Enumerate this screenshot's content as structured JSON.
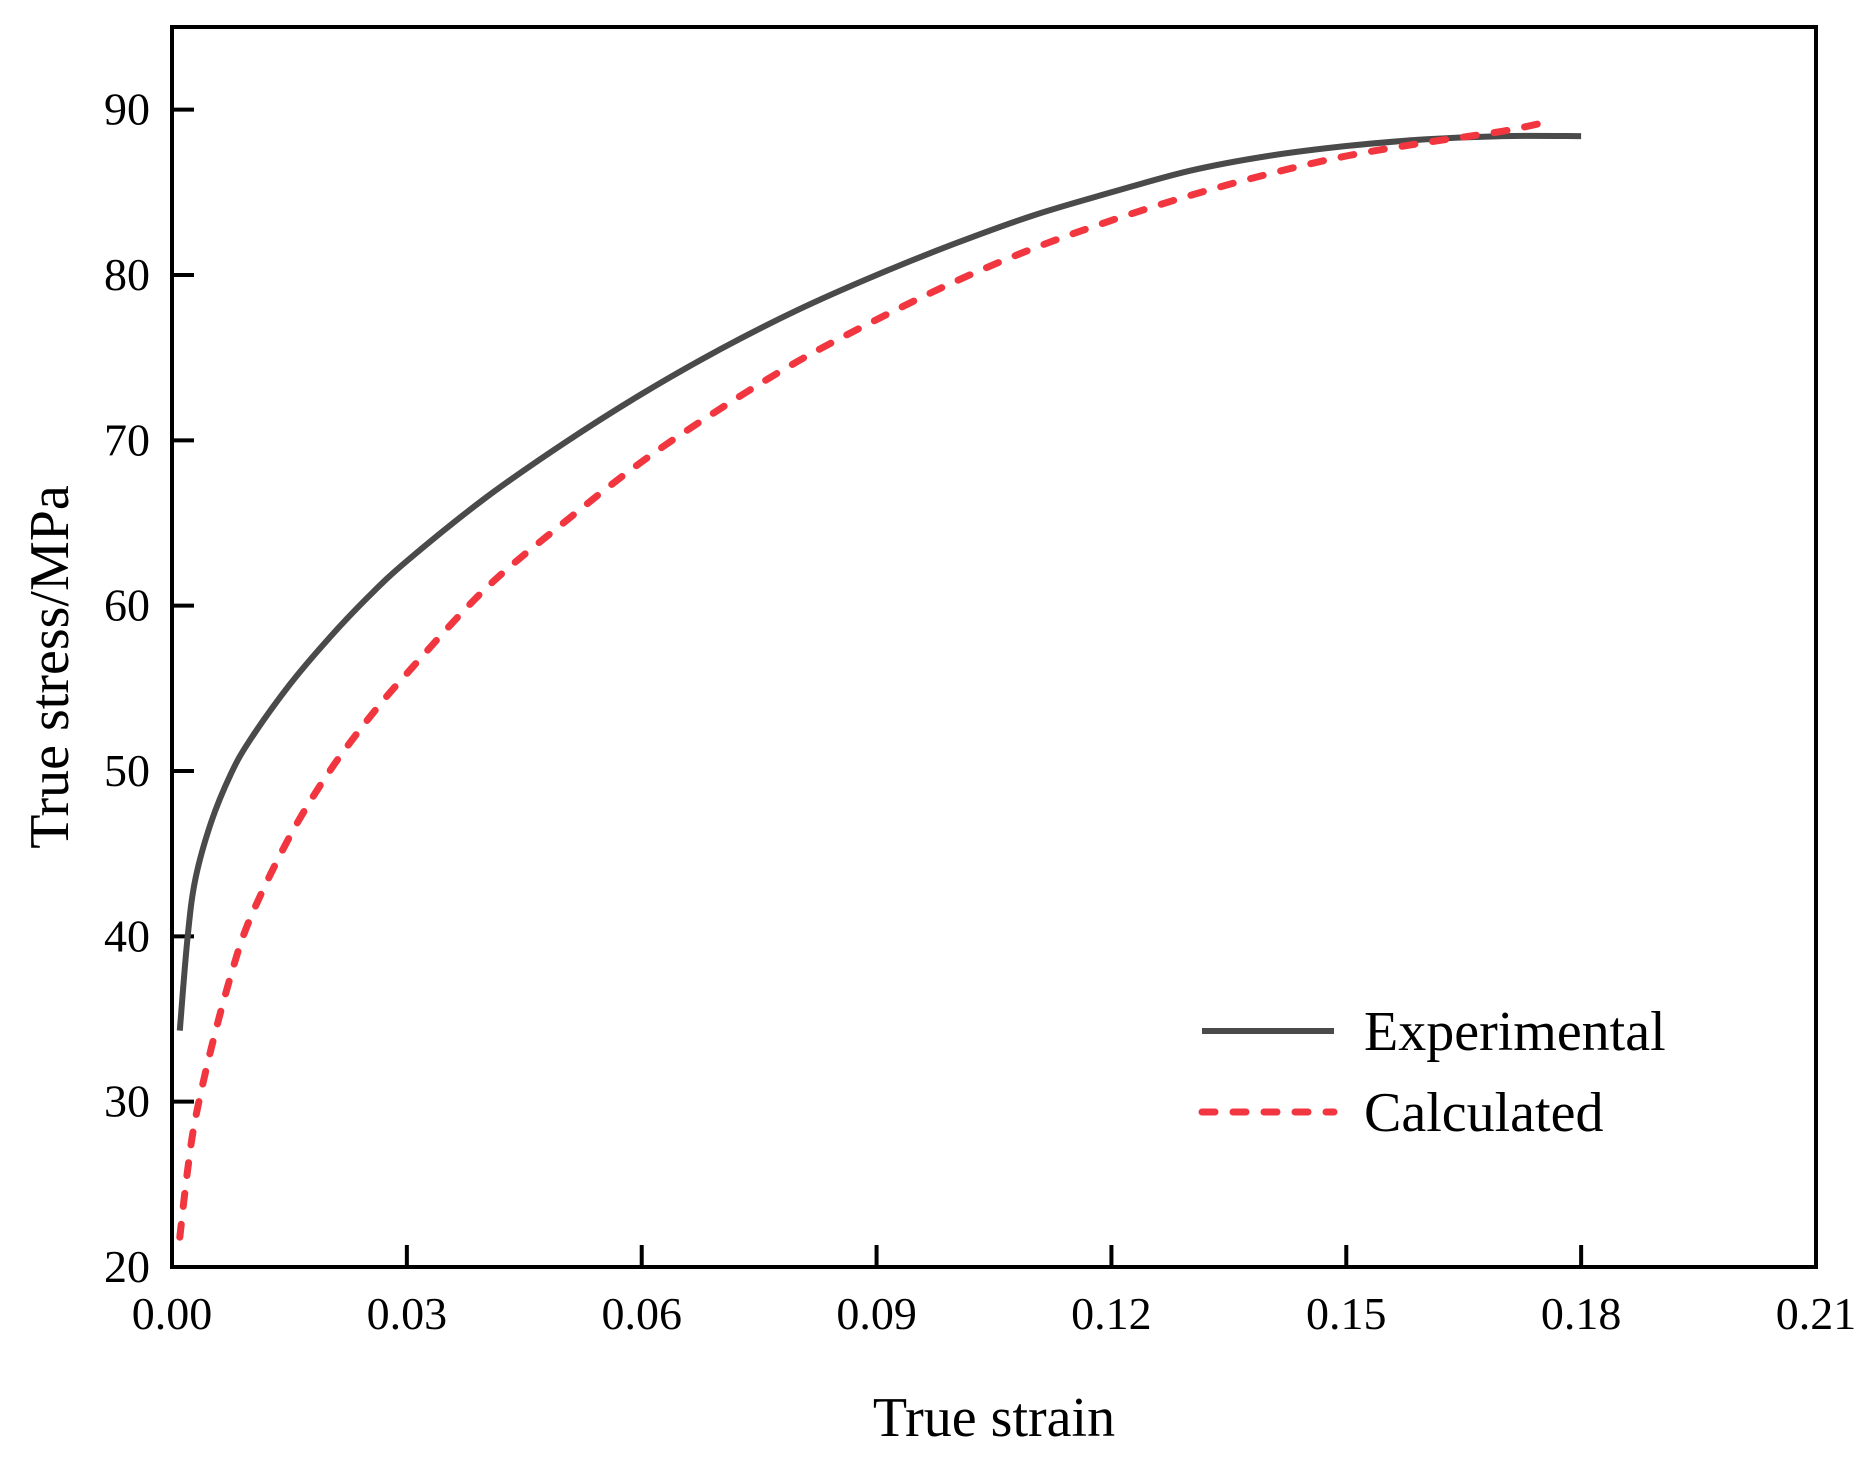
{
  "chart_data": {
    "type": "line",
    "title": "",
    "xlabel": "True strain",
    "ylabel": "True stress/MPa",
    "xlim": [
      0.0,
      0.21
    ],
    "ylim": [
      20,
      95
    ],
    "xticks": [
      0.0,
      0.03,
      0.06,
      0.09,
      0.12,
      0.15,
      0.18,
      0.21
    ],
    "xtick_labels": [
      "0.00",
      "0.03",
      "0.06",
      "0.09",
      "0.12",
      "0.15",
      "0.18",
      "0.21"
    ],
    "yticks": [
      20,
      30,
      40,
      50,
      60,
      70,
      80,
      90
    ],
    "ytick_labels": [
      "20",
      "30",
      "40",
      "50",
      "60",
      "70",
      "80",
      "90"
    ],
    "grid": false,
    "legend_position": "bottom-right",
    "series": [
      {
        "name": "Experimental",
        "color": "#4a4a4a",
        "style": "solid",
        "x": [
          0.001,
          0.002,
          0.003,
          0.005,
          0.0075,
          0.01,
          0.015,
          0.02,
          0.025,
          0.03,
          0.04,
          0.05,
          0.06,
          0.07,
          0.08,
          0.09,
          0.1,
          0.11,
          0.12,
          0.13,
          0.14,
          0.15,
          0.16,
          0.17,
          0.18
        ],
        "y": [
          34.3,
          40.0,
          43.5,
          46.9,
          49.8,
          51.9,
          55.2,
          58.0,
          60.5,
          62.7,
          66.5,
          69.8,
          72.8,
          75.5,
          77.9,
          80.0,
          81.9,
          83.6,
          85.0,
          86.3,
          87.2,
          87.8,
          88.2,
          88.4,
          88.4
        ]
      },
      {
        "name": "Calculated",
        "color": "#f2363f",
        "style": "dashed",
        "x": [
          0.001,
          0.002,
          0.003,
          0.005,
          0.0075,
          0.01,
          0.015,
          0.02,
          0.025,
          0.03,
          0.04,
          0.05,
          0.06,
          0.07,
          0.08,
          0.09,
          0.1,
          0.11,
          0.12,
          0.13,
          0.14,
          0.15,
          0.16,
          0.17,
          0.176
        ],
        "y": [
          21.8,
          25.9,
          29.0,
          33.2,
          37.6,
          41.1,
          46.0,
          49.9,
          53.1,
          55.9,
          61.0,
          65.0,
          68.7,
          71.9,
          74.8,
          77.3,
          79.6,
          81.6,
          83.3,
          84.8,
          86.1,
          87.2,
          88.0,
          88.7,
          89.3
        ]
      }
    ]
  }
}
